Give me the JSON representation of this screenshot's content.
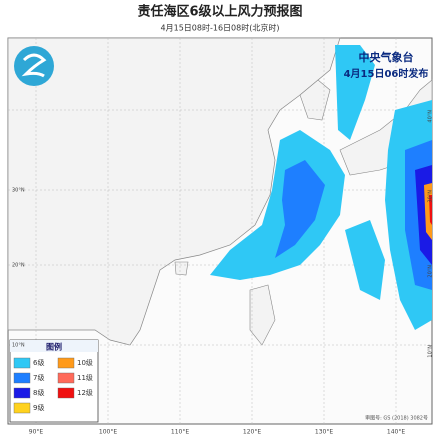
{
  "header": {
    "title": "责任海区6级以上风力预报图",
    "subtitle": "4月15日08时-16日08时(北京时)"
  },
  "issuer": {
    "name": "中央气象台",
    "time": "4月15日06时发布"
  },
  "legend": {
    "title": "图例",
    "items": [
      {
        "label": "6级",
        "color": "#2fc8f5"
      },
      {
        "label": "7级",
        "color": "#1e7fff"
      },
      {
        "label": "8级",
        "color": "#1a1ae6"
      },
      {
        "label": "9级",
        "color": "#ffd21e"
      },
      {
        "label": "10级",
        "color": "#ff9a1a"
      },
      {
        "label": "11级",
        "color": "#ff6a5a"
      },
      {
        "label": "12级",
        "color": "#f01010"
      }
    ]
  },
  "axes": {
    "bottom": [
      "90°E",
      "100°E",
      "110°E",
      "120°E",
      "130°E",
      "140°E"
    ],
    "right": [
      "40°N",
      "30°N",
      "20°N",
      "10°N"
    ],
    "left": [
      "30°N",
      "20°N",
      "10°N"
    ]
  },
  "credit": "审图号: GS (2018) 3082号"
}
